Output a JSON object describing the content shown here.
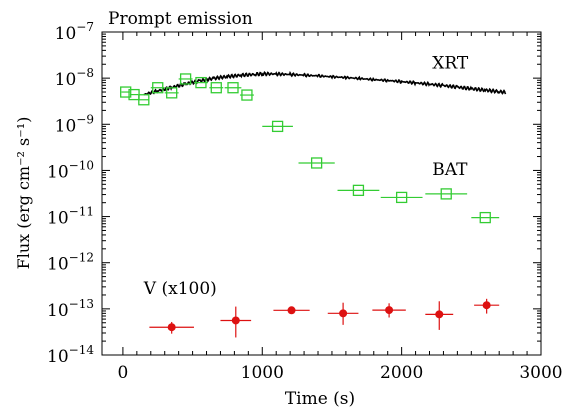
{
  "chart_data": {
    "type": "scatter",
    "title": "Prompt emission",
    "xlabel": "Time (s)",
    "ylabel": "Flux (erg cm⁻² s⁻¹)",
    "xlim": [
      -150,
      3000
    ],
    "ylim_log10": [
      -14,
      -7
    ],
    "yscale": "log",
    "grid": false,
    "x_ticks": [
      0,
      1000,
      2000,
      3000
    ],
    "x_tick_labels": [
      "0",
      "1000",
      "2000",
      "3000"
    ],
    "y_ticks_log10": [
      -14,
      -13,
      -12,
      -11,
      -10,
      -9,
      -8,
      -7
    ],
    "y_tick_labels": [
      {
        "base": "10",
        "exp": "−14"
      },
      {
        "base": "10",
        "exp": "−13"
      },
      {
        "base": "10",
        "exp": "−12"
      },
      {
        "base": "10",
        "exp": "−11"
      },
      {
        "base": "10",
        "exp": "−10"
      },
      {
        "base": "10",
        "exp": "−9"
      },
      {
        "base": "10",
        "exp": "−8"
      },
      {
        "base": "10",
        "exp": "−7"
      }
    ],
    "series": [
      {
        "name": "XRT",
        "kind": "line",
        "color": "#000000",
        "x": [
          150,
          250,
          350,
          450,
          550,
          650,
          750,
          850,
          950,
          1000,
          1100,
          1200,
          1300,
          1400,
          1500,
          1600,
          1700,
          1800,
          1900,
          2000,
          2100,
          2200,
          2300,
          2400,
          2500,
          2600,
          2700,
          2750
        ],
        "y": [
          4.4e-09,
          5.3e-09,
          6.3e-09,
          7.5e-09,
          8.7e-09,
          9.9e-09,
          1.08e-08,
          1.16e-08,
          1.21e-08,
          1.24e-08,
          1.23e-08,
          1.2e-08,
          1.16e-08,
          1.12e-08,
          1.07e-08,
          1.03e-08,
          9.8e-09,
          9.3e-09,
          8.9e-09,
          8.4e-09,
          7.9e-09,
          7.4e-09,
          6.9e-09,
          6.4e-09,
          5.9e-09,
          5.5e-09,
          5.1e-09,
          4.9e-09
        ]
      },
      {
        "name": "BAT",
        "kind": "open-square",
        "color": "#33cc33",
        "x": [
          20,
          80,
          150,
          250,
          350,
          450,
          560,
          670,
          790,
          890,
          1110,
          1390,
          1690,
          2000,
          2320,
          2600
        ],
        "xerr": [
          30,
          30,
          40,
          50,
          50,
          50,
          50,
          50,
          60,
          50,
          110,
          130,
          150,
          150,
          150,
          100
        ],
        "y": [
          5e-09,
          4.4e-09,
          3.4e-09,
          6.2e-09,
          4.8e-09,
          9.6e-09,
          8e-09,
          6.2e-09,
          6.2e-09,
          4.3e-09,
          9e-10,
          1.45e-10,
          3.7e-11,
          2.6e-11,
          3.1e-11,
          9.5e-12
        ]
      },
      {
        "name": "V (x100)",
        "kind": "filled-circle",
        "color": "#dd1111",
        "x": [
          350,
          810,
          1210,
          1580,
          1910,
          2270,
          2610
        ],
        "xerr": [
          160,
          110,
          130,
          110,
          120,
          100,
          90
        ],
        "y": [
          4e-14,
          5.6e-14,
          9.3e-14,
          8e-14,
          9.4e-14,
          7.6e-14,
          1.2e-13
        ],
        "ylo": [
          2.9e-14,
          2.4e-14,
          7.8e-14,
          4.5e-14,
          6.5e-14,
          3.5e-14,
          7.9e-14
        ],
        "yhi": [
          5.2e-14,
          1.12e-13,
          1.12e-13,
          1.36e-13,
          1.32e-13,
          1.46e-13,
          1.65e-13
        ]
      }
    ],
    "annotations": [
      {
        "text": "XRT",
        "color": "#000000",
        "x": 2220,
        "y": 1.6e-08
      },
      {
        "text": "BAT",
        "color": "#33cc33",
        "x": 2220,
        "y": 8e-11
      },
      {
        "text": "V (x100)",
        "color": "#dd1111",
        "x": 150,
        "y": 2.1e-13
      }
    ]
  }
}
